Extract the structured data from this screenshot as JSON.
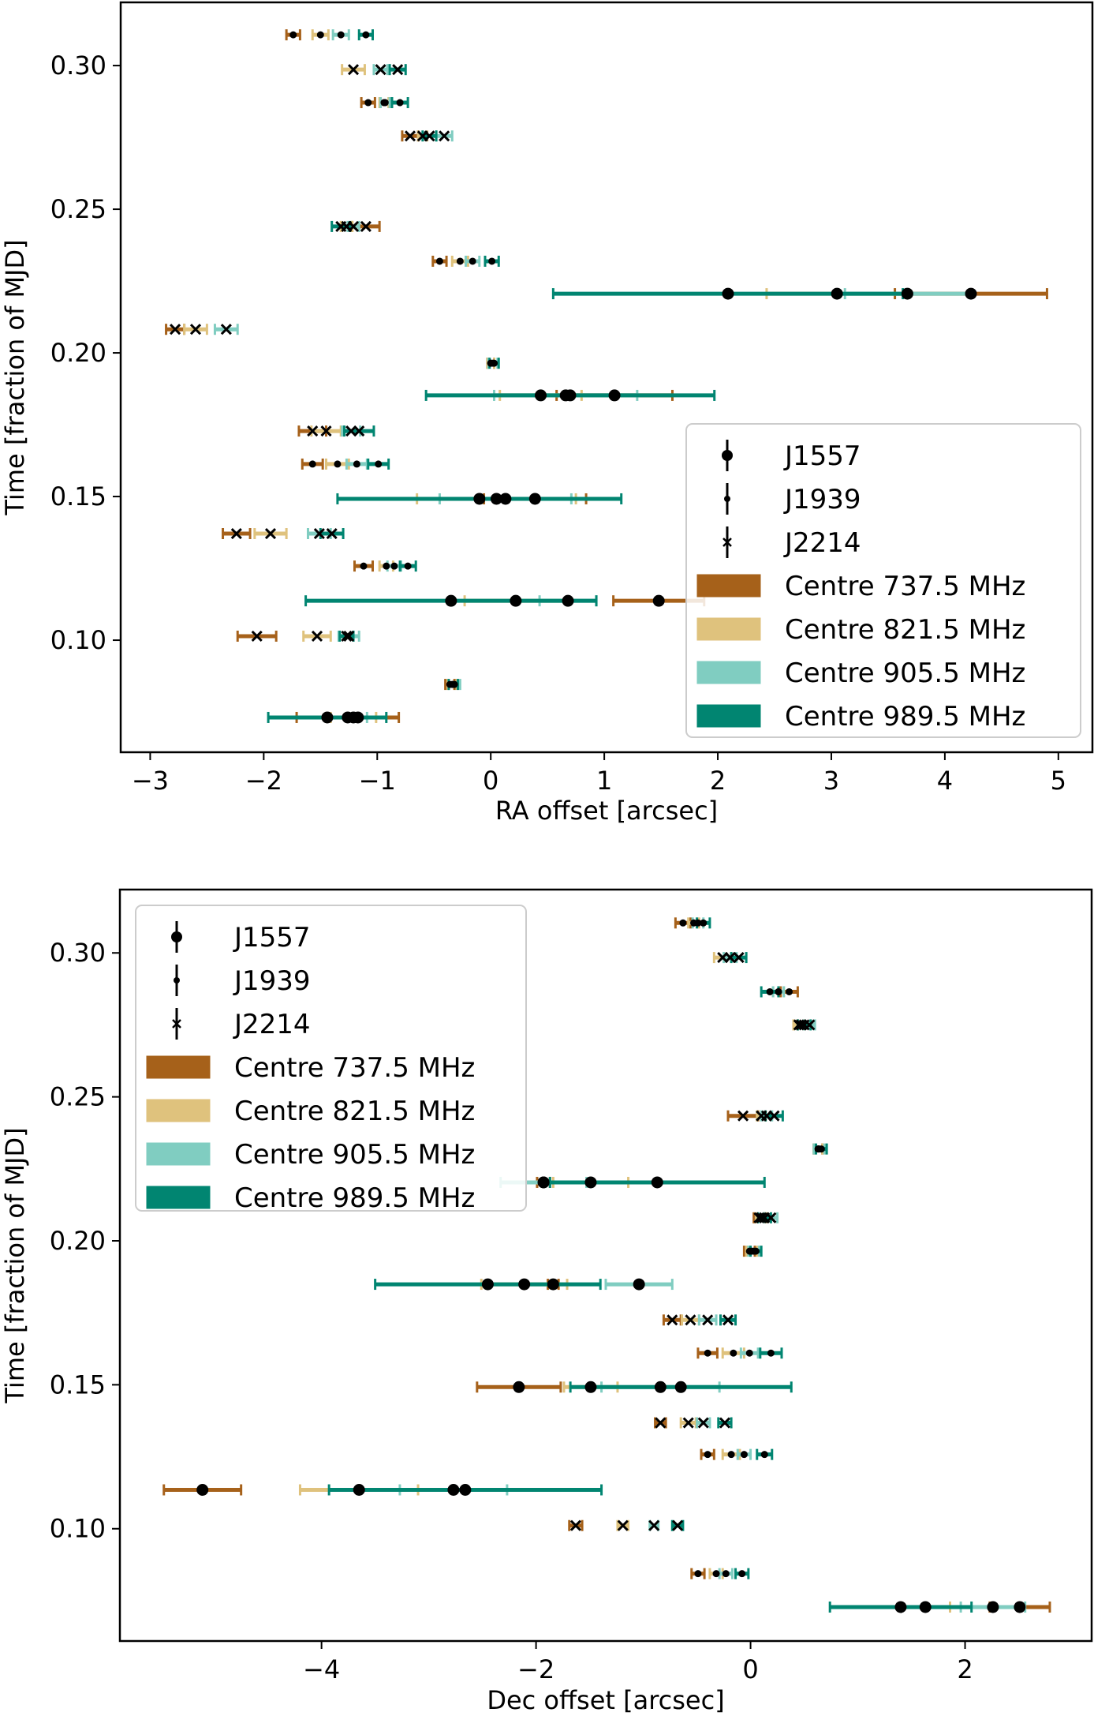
{
  "chart_data": [
    {
      "type": "scatter",
      "subtype": "horizontal-errorbar",
      "xlabel": "RA offset [arcsec]",
      "ylabel": "Time [fraction of MJD]",
      "xlim": [
        -3.26,
        5.3
      ],
      "ylim": [
        0.061,
        0.322
      ],
      "xticks": [
        -3,
        -2,
        -1,
        0,
        1,
        2,
        3,
        4,
        5
      ],
      "xtick_labels": [
        "−3",
        "−2",
        "−1",
        "0",
        "1",
        "2",
        "3",
        "4",
        "5"
      ],
      "yticks": [
        0.1,
        0.15,
        0.2,
        0.25,
        0.3
      ],
      "ytick_labels": [
        "0.10",
        "0.15",
        "0.20",
        "0.25",
        "0.30"
      ],
      "legend_position": "lower-right",
      "grid": false,
      "rows": [
        {
          "t": 0.3107,
          "source": "J1939",
          "points": [
            [
              -1.74,
              0.06
            ],
            [
              -1.5,
              0.07
            ],
            [
              -1.32,
              0.07
            ],
            [
              -1.1,
              0.06
            ]
          ]
        },
        {
          "t": 0.2986,
          "source": "J2214",
          "points": [
            null,
            [
              -1.21,
              0.1
            ],
            [
              -0.97,
              0.06
            ],
            [
              -0.82,
              0.07
            ]
          ]
        },
        {
          "t": 0.2871,
          "source": "J1939",
          "points": [
            [
              -1.08,
              0.06
            ],
            [
              -0.94,
              0.04
            ],
            [
              -0.93,
              0.04
            ],
            [
              -0.8,
              0.07
            ]
          ]
        },
        {
          "t": 0.2755,
          "source": "J2214",
          "points": [
            [
              -0.71,
              0.07
            ],
            [
              -0.6,
              0.04
            ],
            [
              -0.41,
              0.07
            ],
            [
              -0.54,
              0.06
            ]
          ]
        },
        {
          "t": 0.244,
          "source": "J2214",
          "points": [
            [
              -1.1,
              0.12
            ],
            [
              -1.27,
              0.05
            ],
            [
              -1.21,
              0.05
            ],
            [
              -1.32,
              0.08
            ]
          ]
        },
        {
          "t": 0.2319,
          "source": "J1939",
          "points": [
            [
              -0.45,
              0.06
            ],
            [
              -0.27,
              0.07
            ],
            [
              -0.16,
              0.06
            ],
            [
              0.01,
              0.06
            ]
          ]
        },
        {
          "t": 0.2206,
          "source": "J1557",
          "points": [
            [
              4.23,
              0.67
            ],
            [
              3.05,
              0.62
            ],
            [
              3.67,
              0.55
            ],
            [
              2.09,
              1.54
            ]
          ]
        },
        {
          "t": 0.2082,
          "source": "J2214",
          "points": [
            [
              -2.78,
              0.08
            ],
            [
              -2.6,
              0.1
            ],
            [
              -2.33,
              0.1
            ],
            null
          ]
        },
        {
          "t": 0.1964,
          "source": "J1939",
          "points": [
            [
              0.0,
              0.03
            ],
            [
              0.0,
              0.03
            ],
            [
              0.02,
              0.04
            ],
            [
              0.03,
              0.04
            ]
          ]
        },
        {
          "t": 0.1852,
          "source": "J1557",
          "points": [
            [
              1.09,
              0.51
            ],
            [
              0.44,
              0.36
            ],
            [
              0.66,
              0.63
            ],
            [
              0.7,
              1.27
            ]
          ]
        },
        {
          "t": 0.1728,
          "source": "J2214",
          "points": [
            [
              -1.57,
              0.12
            ],
            [
              -1.45,
              0.13
            ],
            [
              -1.23,
              0.08
            ],
            [
              -1.16,
              0.13
            ]
          ]
        },
        {
          "t": 0.1613,
          "source": "J1939",
          "points": [
            [
              -1.57,
              0.09
            ],
            [
              -1.35,
              0.1
            ],
            [
              -1.18,
              0.09
            ],
            [
              -0.99,
              0.09
            ]
          ]
        },
        {
          "t": 0.1492,
          "source": "J1557",
          "points": [
            [
              0.39,
              0.45
            ],
            [
              0.05,
              0.7
            ],
            [
              0.13,
              0.58
            ],
            [
              -0.1,
              1.25
            ]
          ]
        },
        {
          "t": 0.1371,
          "source": "J2214",
          "points": [
            [
              -2.24,
              0.12
            ],
            [
              -1.94,
              0.14
            ],
            [
              -1.51,
              0.1
            ],
            [
              -1.4,
              0.1
            ]
          ]
        },
        {
          "t": 0.1258,
          "source": "J1939",
          "points": [
            [
              -1.12,
              0.08
            ],
            [
              -0.92,
              0.06
            ],
            [
              -0.85,
              0.06
            ],
            [
              -0.73,
              0.07
            ]
          ]
        },
        {
          "t": 0.1137,
          "source": "J1557",
          "points": [
            [
              1.48,
              0.4
            ],
            [
              0.22,
              0.45
            ],
            [
              0.68,
              0.25
            ],
            [
              -0.35,
              1.28
            ]
          ]
        },
        {
          "t": 0.1014,
          "source": "J2214",
          "points": [
            [
              -2.06,
              0.17
            ],
            [
              -1.53,
              0.12
            ],
            [
              -1.25,
              0.09
            ],
            [
              -1.27,
              0.06
            ]
          ]
        },
        {
          "t": 0.0846,
          "source": "J1939",
          "points": [
            [
              -0.36,
              0.04
            ],
            [
              -0.34,
              0.04
            ],
            [
              -0.32,
              0.05
            ],
            [
              -0.33,
              0.04
            ]
          ]
        },
        {
          "t": 0.0731,
          "source": "J1557",
          "points": [
            [
              -1.26,
              0.45
            ],
            [
              -1.21,
              0.2
            ],
            [
              -1.17,
              0.08
            ],
            [
              -1.44,
              0.52
            ]
          ]
        }
      ]
    },
    {
      "type": "scatter",
      "subtype": "horizontal-errorbar",
      "xlabel": "Dec offset [arcsec]",
      "ylabel": "Time [fraction of MJD]",
      "xlim": [
        -5.88,
        3.18
      ],
      "ylim": [
        0.061,
        0.322
      ],
      "xticks": [
        -4,
        -2,
        0,
        2
      ],
      "xtick_labels": [
        "−4",
        "−2",
        "0",
        "2"
      ],
      "yticks": [
        0.1,
        0.15,
        0.2,
        0.25,
        0.3
      ],
      "ytick_labels": [
        "0.10",
        "0.15",
        "0.20",
        "0.25",
        "0.30"
      ],
      "legend_position": "upper-left",
      "grid": false,
      "rows": [
        {
          "t": 0.3104,
          "source": "J1939",
          "points": [
            [
              -0.63,
              0.07
            ],
            [
              -0.53,
              0.05
            ],
            [
              -0.49,
              0.05
            ],
            [
              -0.44,
              0.06
            ]
          ]
        },
        {
          "t": 0.2984,
          "source": "J2214",
          "points": [
            null,
            [
              -0.26,
              0.08
            ],
            [
              -0.19,
              0.06
            ],
            [
              -0.11,
              0.07
            ]
          ]
        },
        {
          "t": 0.2865,
          "source": "J1939",
          "points": [
            [
              0.36,
              0.08
            ],
            [
              0.26,
              0.05
            ],
            [
              0.26,
              0.05
            ],
            [
              0.18,
              0.08
            ]
          ]
        },
        {
          "t": 0.275,
          "source": "J2214",
          "points": [
            [
              0.47,
              0.03
            ],
            [
              0.45,
              0.05
            ],
            [
              0.55,
              0.05
            ],
            [
              0.5,
              0.06
            ]
          ]
        },
        {
          "t": 0.2434,
          "source": "J2214",
          "points": [
            [
              -0.07,
              0.14
            ],
            [
              0.1,
              0.04
            ],
            [
              0.15,
              0.05
            ],
            [
              0.22,
              0.08
            ]
          ]
        },
        {
          "t": 0.2319,
          "source": "J1939",
          "points": [
            [
              0.63,
              0.04
            ],
            [
              0.63,
              0.04
            ],
            [
              0.64,
              0.05
            ],
            [
              0.66,
              0.05
            ]
          ]
        },
        {
          "t": 0.2203,
          "source": "J1557",
          "points": [
            [
              -1.93,
              0.06
            ],
            [
              -1.49,
              0.35
            ],
            [
              -1.93,
              0.4
            ],
            [
              -0.87,
              1.0
            ]
          ]
        },
        {
          "t": 0.208,
          "source": "J2214",
          "points": [
            [
              0.08,
              0.05
            ],
            [
              0.1,
              0.05
            ],
            [
              0.19,
              0.06
            ],
            [
              0.13,
              0.06
            ]
          ]
        },
        {
          "t": 0.1964,
          "source": "J1939",
          "points": [
            [
              -0.01,
              0.05
            ],
            [
              0.01,
              0.05
            ],
            [
              0.03,
              0.05
            ],
            [
              0.05,
              0.05
            ]
          ]
        },
        {
          "t": 0.1849,
          "source": "J1557",
          "points": [
            [
              -1.84,
              0.05
            ],
            [
              -2.11,
              0.4
            ],
            [
              -1.04,
              0.31
            ],
            [
              -2.45,
              1.05
            ]
          ]
        },
        {
          "t": 0.1725,
          "source": "J2214",
          "points": [
            [
              -0.73,
              0.08
            ],
            [
              -0.56,
              0.08
            ],
            [
              -0.4,
              0.08
            ],
            [
              -0.21,
              0.07
            ]
          ]
        },
        {
          "t": 0.161,
          "source": "J1939",
          "points": [
            [
              -0.4,
              0.09
            ],
            [
              -0.16,
              0.1
            ],
            [
              -0.01,
              0.08
            ],
            [
              0.19,
              0.1
            ]
          ]
        },
        {
          "t": 0.1492,
          "source": "J1557",
          "points": [
            [
              -2.16,
              0.39
            ],
            [
              -1.49,
              0.25
            ],
            [
              -0.84,
              0.55
            ],
            [
              -0.65,
              1.03
            ]
          ]
        },
        {
          "t": 0.1368,
          "source": "J2214",
          "points": [
            [
              -0.84,
              0.05
            ],
            [
              -0.58,
              0.07
            ],
            [
              -0.44,
              0.06
            ],
            [
              -0.24,
              0.06
            ]
          ]
        },
        {
          "t": 0.1258,
          "source": "J1939",
          "points": [
            [
              -0.4,
              0.06
            ],
            [
              -0.18,
              0.08
            ],
            [
              -0.06,
              0.06
            ],
            [
              0.13,
              0.07
            ]
          ]
        },
        {
          "t": 0.1135,
          "source": "J1557",
          "points": [
            [
              -5.11,
              0.36
            ],
            [
              -3.65,
              0.55
            ],
            [
              -2.77,
              0.5
            ],
            [
              -2.66,
              1.27
            ]
          ]
        },
        {
          "t": 0.1011,
          "source": "J2214",
          "points": [
            [
              -1.63,
              0.06
            ],
            [
              -1.19,
              0.05
            ],
            [
              -0.9,
              0.04
            ],
            [
              -0.68,
              0.05
            ]
          ]
        },
        {
          "t": 0.0844,
          "source": "J1939",
          "points": [
            [
              -0.49,
              0.06
            ],
            [
              -0.32,
              0.06
            ],
            [
              -0.23,
              0.06
            ],
            [
              -0.08,
              0.06
            ]
          ]
        },
        {
          "t": 0.0728,
          "source": "J1557",
          "points": [
            [
              2.51,
              0.28
            ],
            [
              1.63,
              0.23
            ],
            [
              2.26,
              0.3
            ],
            [
              1.4,
              0.66
            ]
          ]
        }
      ]
    }
  ],
  "bands": [
    {
      "label": "Centre 737.5 MHz",
      "color": "#a6611a"
    },
    {
      "label": "Centre 821.5 MHz",
      "color": "#dfc27d"
    },
    {
      "label": "Centre 905.5 MHz",
      "color": "#80cdc1"
    },
    {
      "label": "Centre 989.5 MHz",
      "color": "#018571"
    }
  ],
  "sources": [
    {
      "label": "J1557",
      "marker": "large-dot"
    },
    {
      "label": "J1939",
      "marker": "small-dot"
    },
    {
      "label": "J2214",
      "marker": "x"
    }
  ]
}
